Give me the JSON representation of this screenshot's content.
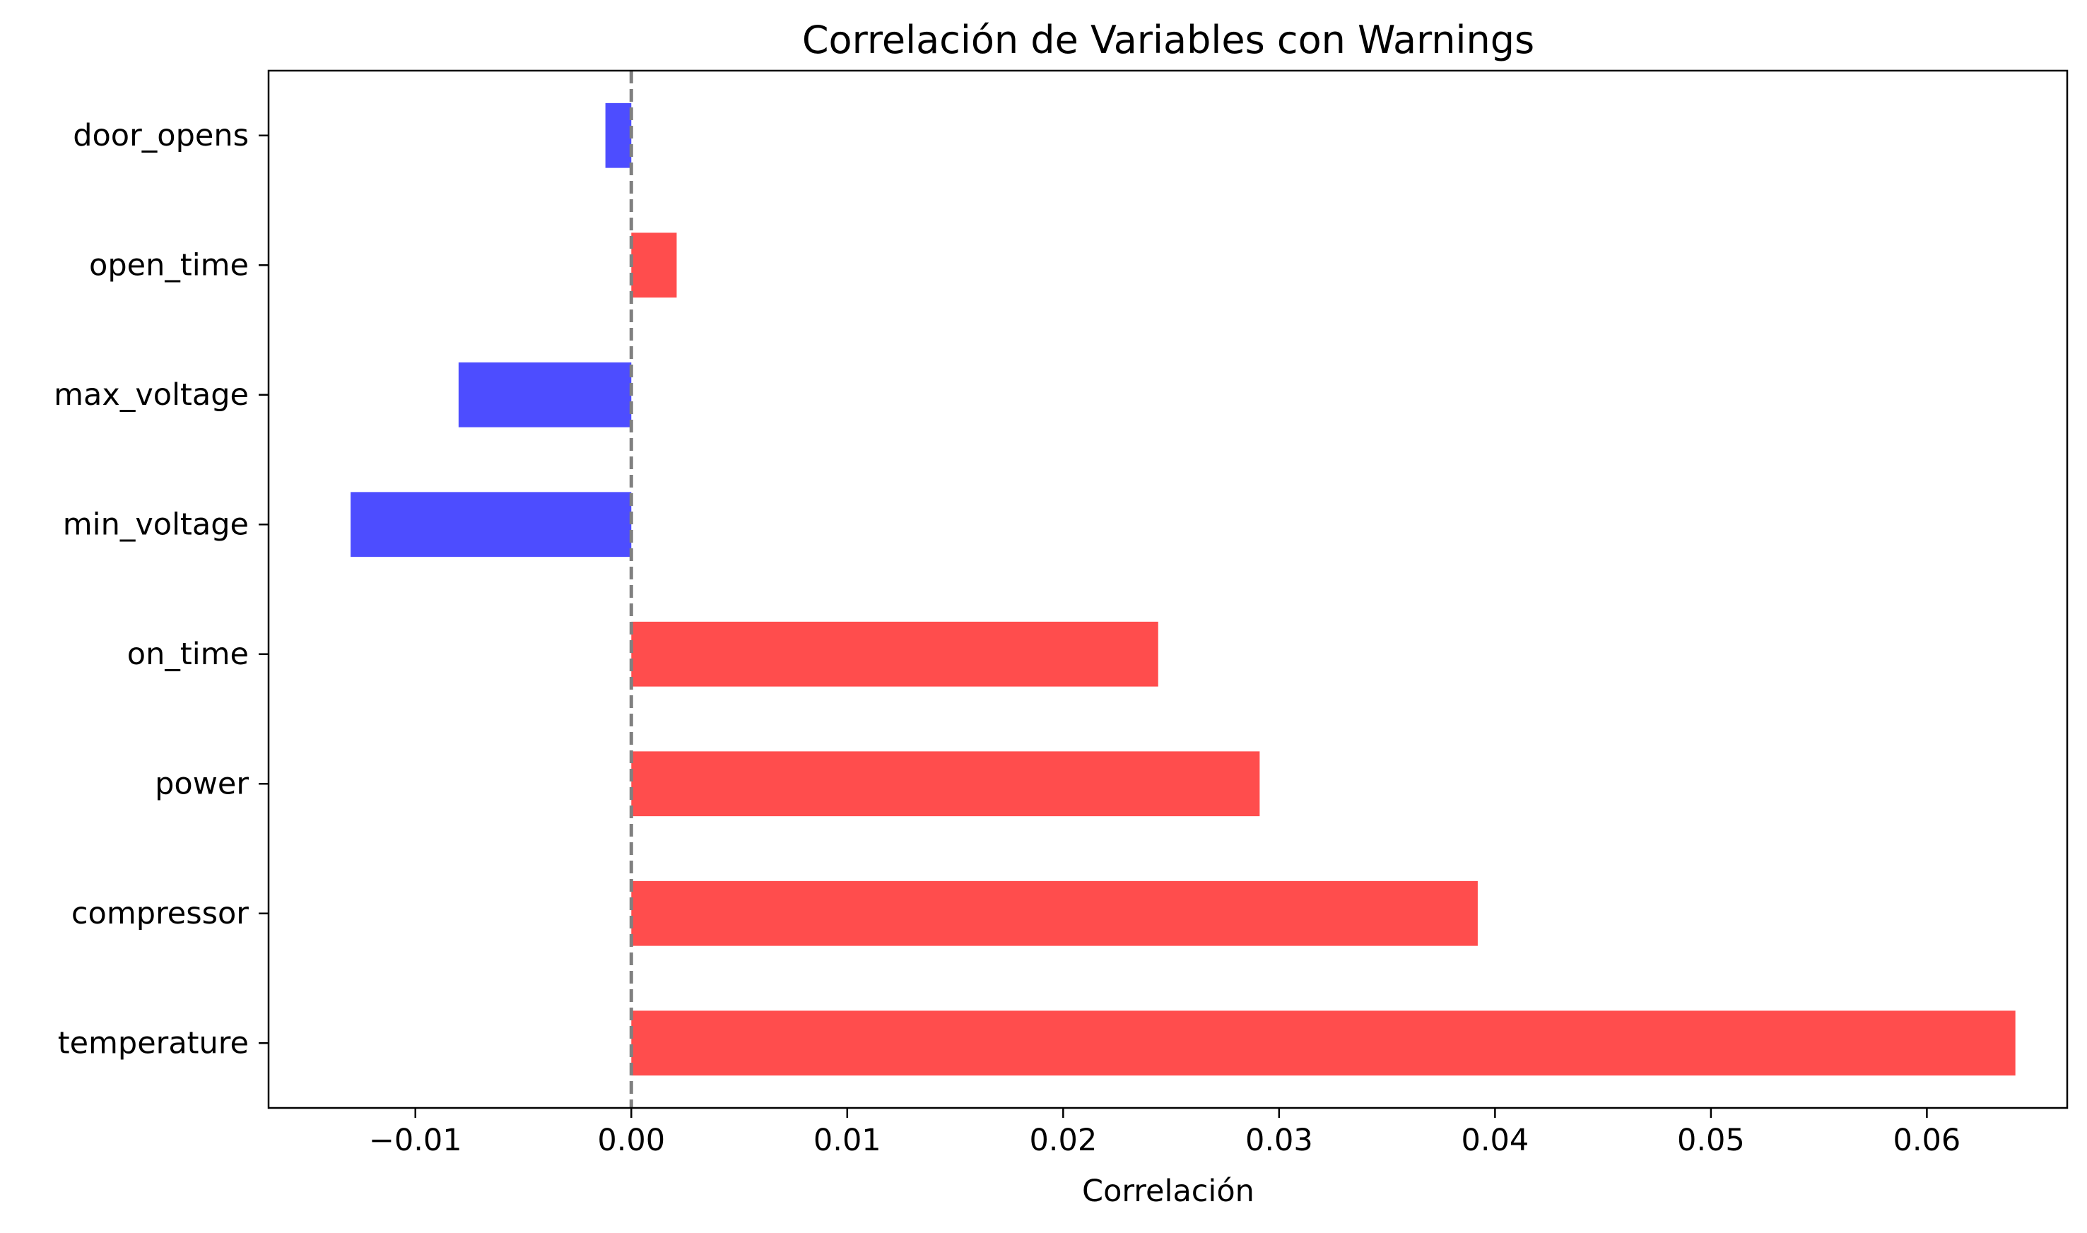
{
  "chart_data": {
    "type": "bar",
    "orientation": "horizontal",
    "title": "Correlación de Variables con Warnings",
    "xlabel": "Correlación",
    "ylabel": "",
    "categories": [
      "temperature",
      "compressor",
      "power",
      "on_time",
      "min_voltage",
      "max_voltage",
      "open_time",
      "door_opens"
    ],
    "values": [
      0.0641,
      0.0392,
      0.0291,
      0.0244,
      -0.013,
      -0.008,
      0.0021,
      -0.0012
    ],
    "xlim": [
      -0.0168,
      0.0665
    ],
    "xticks": [
      -0.01,
      0.0,
      0.01,
      0.02,
      0.03,
      0.04,
      0.05,
      0.06
    ],
    "xtick_labels": [
      "−0.01",
      "0.00",
      "0.01",
      "0.02",
      "0.03",
      "0.04",
      "0.05",
      "0.06"
    ],
    "reference_line": {
      "x": 0,
      "style": "dashed",
      "color": "#808080"
    },
    "colors": {
      "positive": "#ff4d4d",
      "negative": "#4d4dff"
    },
    "grid": false,
    "legend": false
  }
}
